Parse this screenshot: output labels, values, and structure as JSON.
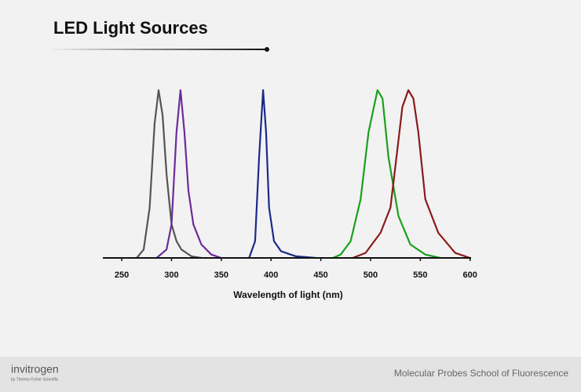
{
  "chart_data": {
    "type": "line",
    "title": "LED Light Sources",
    "xlabel": "Wavelength of light (nm)",
    "xlim": [
      231,
      601
    ],
    "ylim": [
      0,
      1
    ],
    "xticks": [
      250,
      300,
      350,
      400,
      450,
      500,
      550,
      600
    ],
    "series": [
      {
        "color": "#555555",
        "x": [
          265,
          272,
          278,
          283,
          287,
          291,
          295,
          300,
          305,
          310,
          320,
          330
        ],
        "values": [
          0,
          0.05,
          0.3,
          0.8,
          1,
          0.85,
          0.5,
          0.2,
          0.1,
          0.05,
          0.01,
          0
        ]
      },
      {
        "color": "#6a2c9a",
        "x": [
          285,
          295,
          300,
          305,
          309,
          313,
          317,
          322,
          330,
          340,
          350
        ],
        "values": [
          0,
          0.05,
          0.2,
          0.75,
          1,
          0.75,
          0.4,
          0.2,
          0.08,
          0.02,
          0
        ]
      },
      {
        "color": "#1a2a8a",
        "x": [
          378,
          384,
          388,
          392,
          395,
          398,
          403,
          410,
          425,
          445
        ],
        "values": [
          0,
          0.1,
          0.6,
          1,
          0.75,
          0.3,
          0.1,
          0.04,
          0.01,
          0
        ]
      },
      {
        "color": "#1aa01a",
        "x": [
          462,
          470,
          480,
          490,
          498,
          507,
          512,
          518,
          528,
          540,
          555,
          570
        ],
        "values": [
          0,
          0.02,
          0.1,
          0.35,
          0.75,
          1,
          0.95,
          0.6,
          0.25,
          0.08,
          0.02,
          0
        ]
      },
      {
        "color": "#8b1a1a",
        "x": [
          482,
          495,
          510,
          520,
          525,
          532,
          538,
          543,
          548,
          555,
          568,
          585,
          600
        ],
        "values": [
          0,
          0.03,
          0.15,
          0.3,
          0.55,
          0.9,
          1,
          0.95,
          0.75,
          0.35,
          0.15,
          0.03,
          0
        ]
      }
    ]
  },
  "footer": {
    "brand": "invitrogen",
    "brand_sub": "by Thermo Fisher Scientific",
    "course": "Molecular Probes School of Fluorescence"
  }
}
